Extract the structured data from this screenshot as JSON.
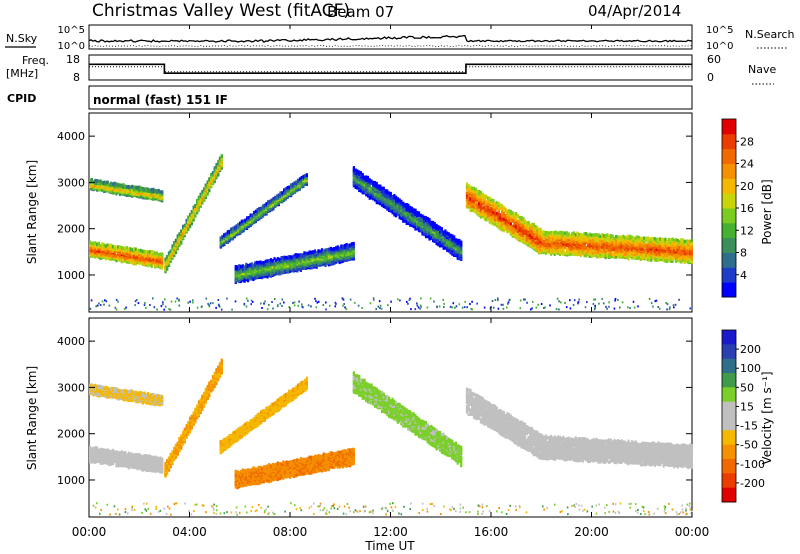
{
  "header": {
    "site": "Christmas Valley West (fitACF)",
    "beam": "Beam 07",
    "date": "04/Apr/2014"
  },
  "noise_panel": {
    "left_label": "N.Sky",
    "right_label": "N.Search",
    "left_ticks": [
      "10^5",
      "10^0"
    ],
    "right_ticks": [
      "10^5",
      "10^0"
    ]
  },
  "freq_panel": {
    "left_label_line1": "Freq.",
    "left_label_line2": "[MHz]",
    "right_label": "Nave",
    "left_ticks": [
      "18",
      "8"
    ],
    "right_ticks": [
      "60",
      "0"
    ]
  },
  "cpid_panel": {
    "label": "CPID",
    "text": "normal (fast) 151 IF"
  },
  "power_panel": {
    "ylabel": "Slant Range [km]",
    "yticks": [
      1000,
      2000,
      3000,
      4000
    ],
    "colorbar_label": "Power [dB]",
    "colorbar_ticks": [
      "4",
      "8",
      "12",
      "16",
      "20",
      "24",
      "28"
    ],
    "colorbar_colors": [
      "#0000ff",
      "#1e3cc8",
      "#2e6e8c",
      "#3a8f5a",
      "#46b030",
      "#7acc20",
      "#c9d40a",
      "#f5b800",
      "#f59000",
      "#f06a00",
      "#ec3d00",
      "#e00000"
    ]
  },
  "velocity_panel": {
    "ylabel": "Slant Range [km]",
    "yticks": [
      1000,
      2000,
      3000,
      4000
    ],
    "colorbar_label": "Velocity [m s⁻¹]",
    "colorbar_ticks": [
      "200",
      "100",
      "50",
      "15",
      "-15",
      "-50",
      "-100",
      "-200"
    ],
    "colorbar_colors": [
      "#1a1acc",
      "#2a3fb0",
      "#2f6f8a",
      "#3f9a4a",
      "#7bcf2a",
      "#c0c0c0",
      "#c0c0c0",
      "#f5b800",
      "#f59000",
      "#f06a00",
      "#ec3d00",
      "#e00000"
    ]
  },
  "x_axis": {
    "label": "Time UT",
    "ticks": [
      "00:00",
      "04:00",
      "08:00",
      "12:00",
      "16:00",
      "20:00",
      "00:00"
    ]
  },
  "chart_data": {
    "type": "heatmap",
    "title": "Christmas Valley West (fitACF) Beam 07 04/Apr/2014",
    "xlabel": "Time UT",
    "ylabel": "Slant Range [km]",
    "xlim_hours": [
      0,
      24
    ],
    "ylim_km": [
      200,
      4500
    ],
    "echo_bands": [
      {
        "name": "band-a",
        "t_start": 0.0,
        "t_end": 2.9,
        "range_start": 1550,
        "range_end": 1300,
        "width": 280,
        "power": 26,
        "velocity": 0
      },
      {
        "name": "band-b",
        "t_start": 0.0,
        "t_end": 2.9,
        "range_start": 2950,
        "range_end": 2700,
        "width": 180,
        "power": 20,
        "velocity": -20
      },
      {
        "name": "band-c",
        "t_start": 3.0,
        "t_end": 5.3,
        "range_start": 1200,
        "range_end": 3500,
        "width": 260,
        "power": 21,
        "velocity": -40
      },
      {
        "name": "band-d",
        "t_start": 5.2,
        "t_end": 8.7,
        "range_start": 1700,
        "range_end": 3100,
        "width": 200,
        "power": 15,
        "velocity": -30
      },
      {
        "name": "band-e",
        "t_start": 5.8,
        "t_end": 10.5,
        "range_start": 1000,
        "range_end": 1500,
        "width": 320,
        "power": 14,
        "velocity": -70
      },
      {
        "name": "band-f",
        "t_start": 10.5,
        "t_end": 14.8,
        "range_start": 3100,
        "range_end": 1500,
        "width": 380,
        "power": 11,
        "velocity": 25
      },
      {
        "name": "band-g",
        "t_start": 15.0,
        "t_end": 18.0,
        "range_start": 2700,
        "range_end": 1700,
        "width": 500,
        "power": 27,
        "velocity": 0
      },
      {
        "name": "band-h",
        "t_start": 18.0,
        "t_end": 24.0,
        "range_start": 1700,
        "range_end": 1500,
        "width": 450,
        "power": 26,
        "velocity": 0
      }
    ],
    "frequency_mhz": [
      {
        "t_start": 0.0,
        "t_end": 3.0,
        "value": 14.5
      },
      {
        "t_start": 3.0,
        "t_end": 15.0,
        "value": 10.3
      },
      {
        "t_start": 15.0,
        "t_end": 24.0,
        "value": 14.5
      }
    ],
    "nave": [
      {
        "t_start": 0.0,
        "t_end": 3.0,
        "value": 32
      },
      {
        "t_start": 3.0,
        "t_end": 15.0,
        "value": 18
      },
      {
        "t_start": 15.0,
        "t_end": 24.0,
        "value": 32
      }
    ]
  }
}
